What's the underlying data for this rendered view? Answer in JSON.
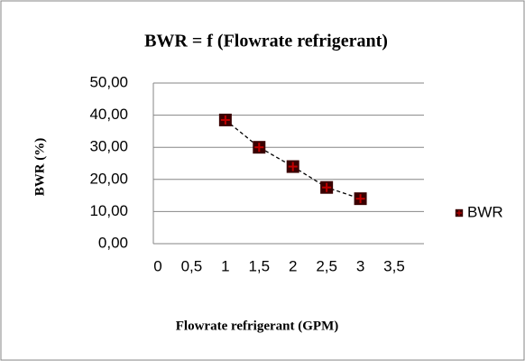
{
  "chart_data": {
    "type": "scatter",
    "title": "BWR = f (Flowrate refrigerant)",
    "x_label": "Flowrate refrigerant (GPM)",
    "y_label": "BWR (%)",
    "series": [
      {
        "name": "BWR",
        "color": "#c00000",
        "x": [
          1,
          1.5,
          2,
          2.5,
          3
        ],
        "values": [
          38.5,
          30,
          24,
          17.5,
          14
        ]
      }
    ],
    "xlim": [
      0,
      3.5
    ],
    "xticks": [
      0,
      {
        "value": 0.5,
        "label": "0,5"
      },
      1,
      {
        "value": 1.5,
        "label": "1,5"
      },
      2,
      {
        "value": 2.5,
        "label": "2,5"
      },
      3,
      {
        "value": 3.5,
        "label": "3,5"
      }
    ],
    "ylim": [
      0,
      50
    ],
    "yticks": [
      {
        "value": 0,
        "label": "0,00"
      },
      {
        "value": 10,
        "label": "10,00"
      },
      {
        "value": 20,
        "label": "20,00"
      },
      {
        "value": 30,
        "label": "30,00"
      },
      {
        "value": 40,
        "label": "40,00"
      },
      {
        "value": 50,
        "label": "50,00"
      }
    ],
    "grid": true,
    "legend": "right"
  }
}
